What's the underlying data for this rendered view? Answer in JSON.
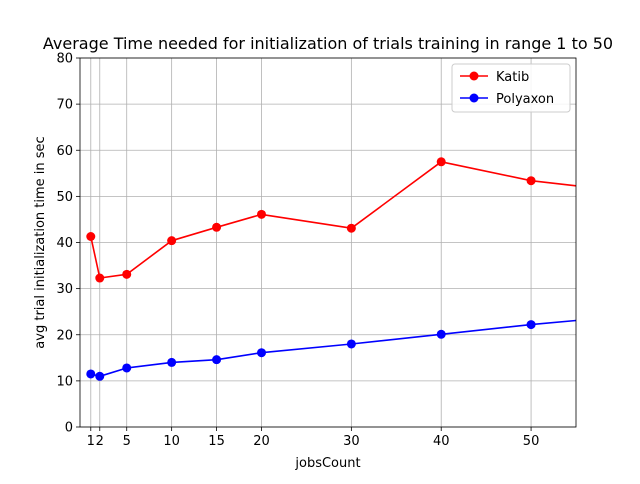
{
  "chart_data": {
    "type": "line",
    "title": "Average Time needed for initialization of  trials training in range 1 to 50",
    "xlabel": "jobsCount",
    "ylabel": "avg trial initialization time in sec",
    "xlim": [
      -0.2,
      55
    ],
    "ylim": [
      0,
      80
    ],
    "x_ticks": [
      1,
      2,
      5,
      10,
      15,
      20,
      30,
      40,
      50
    ],
    "y_ticks": [
      0,
      10,
      20,
      30,
      40,
      50,
      60,
      70,
      80
    ],
    "grid": true,
    "legend_position": "upper right",
    "series": [
      {
        "name": "Katib",
        "color": "#ff0000",
        "x": [
          1,
          2,
          5,
          10,
          15,
          20,
          30,
          40,
          50,
          55
        ],
        "y": [
          41.3,
          32.3,
          33.1,
          40.4,
          43.3,
          46.1,
          43.1,
          57.5,
          53.4,
          52.3
        ],
        "markers_at": [
          1,
          2,
          5,
          10,
          15,
          20,
          30,
          40,
          50
        ]
      },
      {
        "name": "Polyaxon",
        "color": "#0000ff",
        "x": [
          1,
          2,
          5,
          10,
          15,
          20,
          30,
          40,
          50,
          55
        ],
        "y": [
          11.5,
          11.0,
          12.8,
          14.0,
          14.6,
          16.1,
          18.0,
          20.1,
          22.2,
          23.1
        ],
        "markers_at": [
          1,
          2,
          5,
          10,
          15,
          20,
          30,
          40,
          50
        ]
      }
    ]
  }
}
